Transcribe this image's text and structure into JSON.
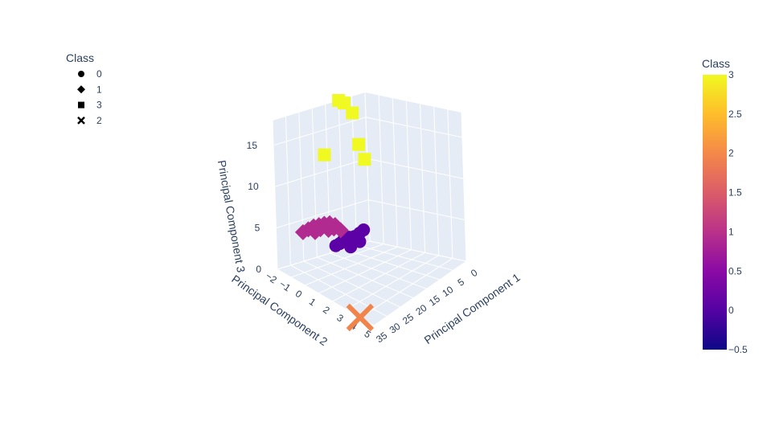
{
  "chart_data": {
    "type": "scatter3d",
    "axes": {
      "x": {
        "label": "Principal Component 1",
        "ticks": [
          "0",
          "5",
          "10",
          "15",
          "20",
          "25",
          "30",
          "35"
        ]
      },
      "y": {
        "label": "Principal Component 2",
        "ticks": [
          "−2",
          "−1",
          "0",
          "1",
          "2",
          "3",
          "4",
          "5"
        ]
      },
      "z": {
        "label": "Principal Component 3",
        "ticks": [
          "0",
          "5",
          "10",
          "15"
        ]
      }
    },
    "legend": {
      "title": "Class",
      "placement": "top-left",
      "entries": [
        {
          "label": "0",
          "symbol": "circle"
        },
        {
          "label": "1",
          "symbol": "diamond"
        },
        {
          "label": "3",
          "symbol": "square"
        },
        {
          "label": "2",
          "symbol": "x"
        }
      ]
    },
    "colorbar": {
      "title": "Class",
      "range": [
        -0.5,
        3
      ],
      "ticks": [
        "3",
        "2.5",
        "2",
        "1.5",
        "1",
        "0.5",
        "0",
        "−0.5"
      ],
      "colors": [
        "#0d0887",
        "#5402a3",
        "#8b0aa5",
        "#b93289",
        "#db5c68",
        "#f48849",
        "#febd2a",
        "#f0f921"
      ]
    },
    "series": [
      {
        "name": "0",
        "symbol": "circle",
        "color": "#5c01a6",
        "points": [
          [
            20,
            0.4,
            4.0
          ],
          [
            19,
            0.6,
            4.2
          ],
          [
            21,
            0.2,
            3.8
          ],
          [
            18,
            0.8,
            4.6
          ],
          [
            22,
            0.1,
            3.4
          ],
          [
            20,
            0.5,
            3.0
          ],
          [
            17,
            0.9,
            4.9
          ],
          [
            23,
            0.0,
            3.2
          ],
          [
            19,
            0.3,
            3.6
          ],
          [
            21,
            0.6,
            4.4
          ],
          [
            14,
            0.0,
            2.5
          ],
          [
            18,
            0.5,
            4.0
          ]
        ]
      },
      {
        "name": "1",
        "symbol": "diamond",
        "color": "#b12a90",
        "points": [
          [
            28,
            -1.0,
            5.0
          ],
          [
            27,
            -0.8,
            5.4
          ],
          [
            26,
            -0.6,
            5.6
          ],
          [
            25,
            -0.4,
            5.8
          ],
          [
            24,
            -0.2,
            5.9
          ],
          [
            23,
            0.0,
            5.7
          ],
          [
            26,
            -0.5,
            5.2
          ],
          [
            29,
            -1.2,
            4.6
          ],
          [
            25,
            -0.1,
            5.3
          ],
          [
            24,
            0.1,
            5.5
          ],
          [
            27,
            -0.7,
            4.8
          ],
          [
            22,
            0.2,
            5.1
          ]
        ]
      },
      {
        "name": "3",
        "symbol": "square",
        "color": "#f0f921",
        "points": [
          [
            10,
            -2.0,
            18
          ],
          [
            8,
            -2.0,
            17.5
          ],
          [
            5,
            -2.0,
            16
          ],
          [
            3,
            -2.0,
            12
          ],
          [
            1,
            -2.0,
            10
          ],
          [
            16,
            -2.0,
            12
          ]
        ]
      },
      {
        "name": "2",
        "symbol": "x",
        "color": "#f1844b",
        "points": [
          [
            35,
            4.0,
            0
          ]
        ]
      }
    ]
  }
}
